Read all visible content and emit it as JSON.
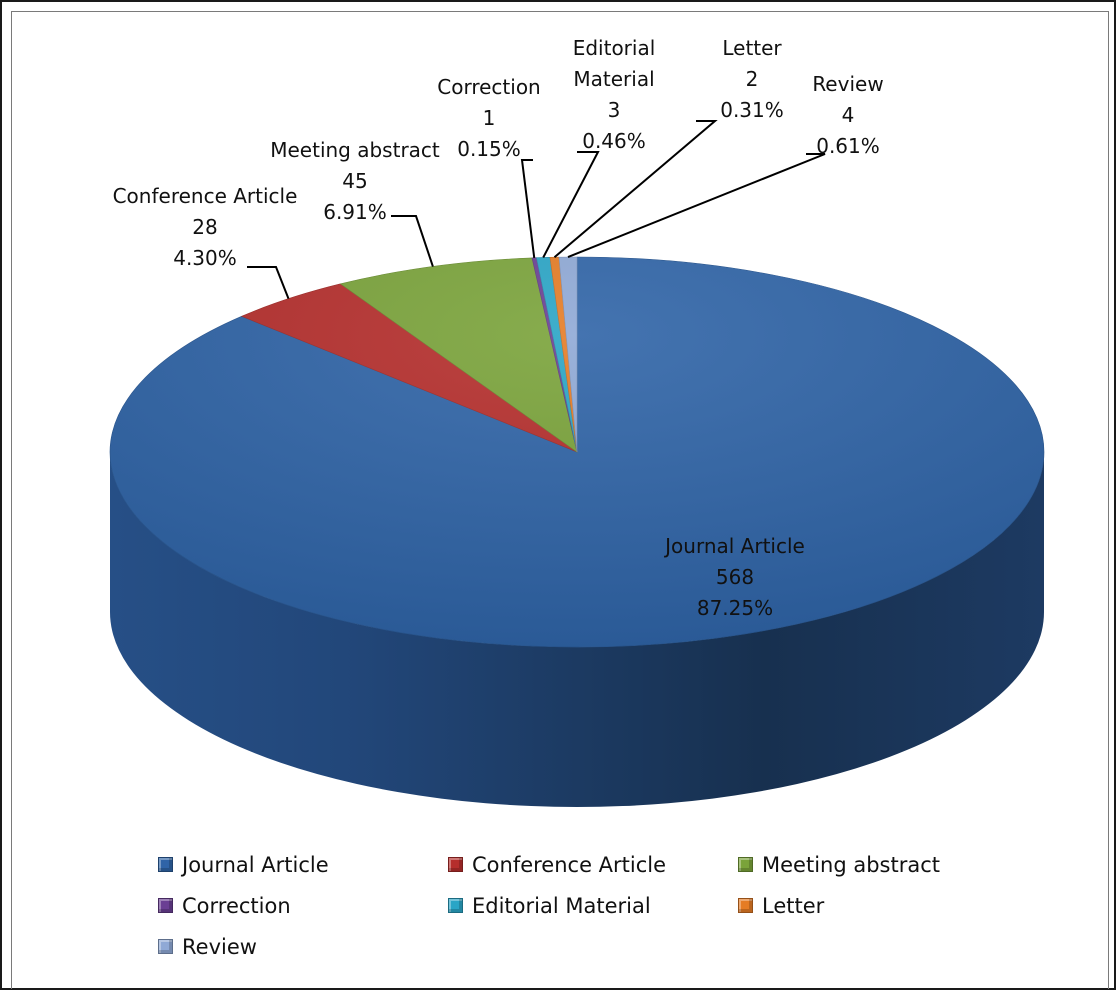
{
  "chart_data": {
    "type": "pie",
    "style": "3d",
    "categories": [
      "Journal Article",
      "Conference Article",
      "Meeting abstract",
      "Correction",
      "Editorial Material",
      "Letter",
      "Review"
    ],
    "values": [
      568,
      28,
      45,
      1,
      3,
      2,
      4
    ],
    "percent_labels": [
      "87.25%",
      "4.30%",
      "6.91%",
      "0.15%",
      "0.46%",
      "0.31%",
      "0.61%"
    ],
    "colors": [
      "#2f64a7",
      "#b52e2c",
      "#7aa33a",
      "#6a3f93",
      "#2aa5c6",
      "#e57c25",
      "#8fa9d6"
    ],
    "legend_position": "bottom",
    "slice_labels": [
      {
        "lines": [
          "Journal Article",
          "568",
          "87.25%"
        ]
      },
      {
        "lines": [
          "Conference Article",
          "28",
          "4.30%"
        ]
      },
      {
        "lines": [
          "Meeting abstract",
          "45",
          "6.91%"
        ]
      },
      {
        "lines": [
          "Correction",
          "1",
          "0.15%"
        ]
      },
      {
        "lines": [
          "Editorial",
          "Material",
          "3",
          "0.46%"
        ]
      },
      {
        "lines": [
          "Letter",
          "2",
          "0.31%"
        ]
      },
      {
        "lines": [
          "Review",
          "4",
          "0.61%"
        ]
      }
    ]
  }
}
